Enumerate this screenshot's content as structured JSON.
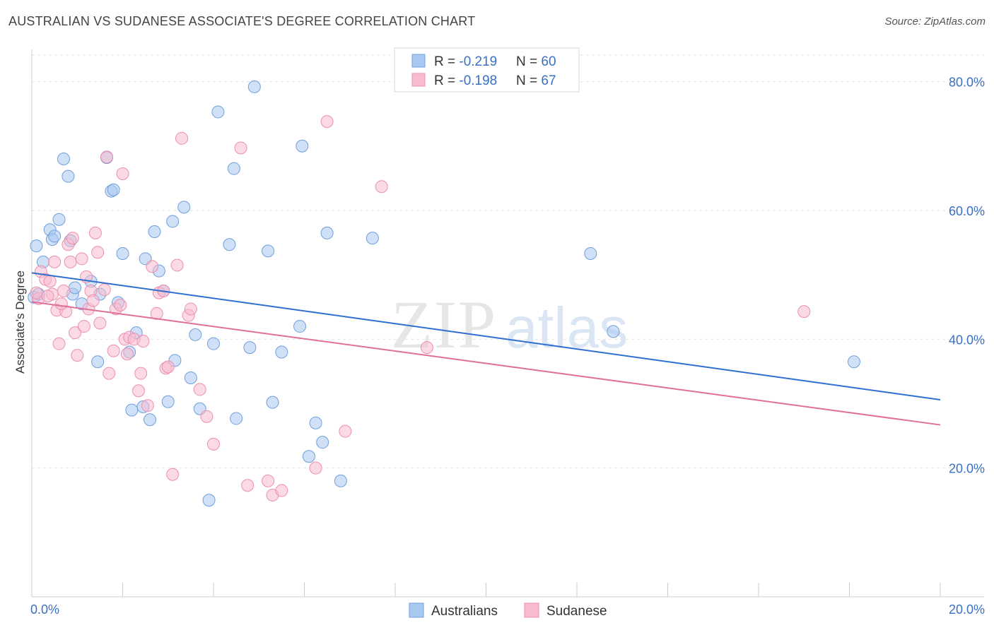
{
  "title": "AUSTRALIAN VS SUDANESE ASSOCIATE'S DEGREE CORRELATION CHART",
  "source": "Source: ZipAtlas.com",
  "watermark": {
    "zip": "ZIP",
    "atlas": "atlas"
  },
  "chart_data": {
    "type": "scatter",
    "ylabel": "Associate's Degree",
    "xlim": [
      0,
      20
    ],
    "ylim": [
      0,
      85
    ],
    "x_ticks": [
      0,
      2,
      4,
      6,
      8,
      10,
      12,
      14,
      16,
      18,
      20
    ],
    "x_tick_labels": {
      "left": "0.0%",
      "right": "20.0%"
    },
    "y_ticks": [
      {
        "value": 20,
        "label": "20.0%"
      },
      {
        "value": 40,
        "label": "40.0%"
      },
      {
        "value": 60,
        "label": "60.0%"
      },
      {
        "value": 80,
        "label": "80.0%"
      }
    ],
    "grid": true,
    "legend_position": "top-center",
    "series": [
      {
        "name": "Australians",
        "color": "#a9c8f0",
        "stroke": "#6f9fdc",
        "line_color": "#2f6fd0",
        "R": "-0.219",
        "N": "60",
        "trend": {
          "x": [
            0,
            20
          ],
          "y": [
            50.3,
            30.6
          ]
        },
        "points": [
          [
            0.1,
            54.5
          ],
          [
            0.25,
            52
          ],
          [
            0.4,
            57
          ],
          [
            0.45,
            55.5
          ],
          [
            0.5,
            56
          ],
          [
            0.6,
            58.6
          ],
          [
            0.7,
            68
          ],
          [
            0.8,
            65.3
          ],
          [
            0.85,
            55.3
          ],
          [
            0.9,
            47
          ],
          [
            0.95,
            48
          ],
          [
            1.1,
            45.5
          ],
          [
            1.3,
            49
          ],
          [
            1.45,
            36.5
          ],
          [
            1.5,
            47
          ],
          [
            1.65,
            68.2
          ],
          [
            1.75,
            63
          ],
          [
            1.8,
            63.2
          ],
          [
            1.9,
            45.7
          ],
          [
            2.0,
            53.3
          ],
          [
            2.15,
            38
          ],
          [
            2.2,
            29
          ],
          [
            2.3,
            41
          ],
          [
            2.45,
            29.5
          ],
          [
            2.5,
            52.5
          ],
          [
            2.6,
            27.5
          ],
          [
            2.7,
            56.7
          ],
          [
            2.8,
            50.6
          ],
          [
            2.9,
            47.5
          ],
          [
            3.0,
            30.3
          ],
          [
            3.1,
            58.3
          ],
          [
            3.15,
            36.7
          ],
          [
            3.35,
            60.5
          ],
          [
            3.5,
            34
          ],
          [
            3.6,
            40.7
          ],
          [
            3.7,
            29.2
          ],
          [
            3.9,
            15
          ],
          [
            4.0,
            39.3
          ],
          [
            4.1,
            75.3
          ],
          [
            4.35,
            54.7
          ],
          [
            4.45,
            66.5
          ],
          [
            4.5,
            27.7
          ],
          [
            4.8,
            38.7
          ],
          [
            4.9,
            79.2
          ],
          [
            5.2,
            53.7
          ],
          [
            5.3,
            30.2
          ],
          [
            5.5,
            38
          ],
          [
            5.9,
            42
          ],
          [
            5.95,
            70
          ],
          [
            6.1,
            21.8
          ],
          [
            6.25,
            27
          ],
          [
            6.4,
            24
          ],
          [
            6.5,
            56.5
          ],
          [
            6.8,
            18
          ],
          [
            7.5,
            55.7
          ],
          [
            12.3,
            53.3
          ],
          [
            12.8,
            41.2
          ],
          [
            18.1,
            36.5
          ],
          [
            0.05,
            46.5
          ],
          [
            0.15,
            47
          ]
        ]
      },
      {
        "name": "Sudanese",
        "color": "#f8bcd0",
        "stroke": "#ec8fae",
        "line_color": "#e0709a",
        "R": "-0.198",
        "N": "67",
        "trend": {
          "x": [
            0,
            20
          ],
          "y": [
            45.8,
            26.7
          ]
        },
        "points": [
          [
            0.15,
            46.3
          ],
          [
            0.2,
            50.5
          ],
          [
            0.3,
            49.3
          ],
          [
            0.4,
            49
          ],
          [
            0.45,
            47
          ],
          [
            0.5,
            52
          ],
          [
            0.55,
            44.5
          ],
          [
            0.6,
            39.3
          ],
          [
            0.7,
            47.5
          ],
          [
            0.75,
            44.3
          ],
          [
            0.8,
            54.7
          ],
          [
            0.85,
            52
          ],
          [
            0.9,
            55.7
          ],
          [
            0.95,
            41
          ],
          [
            1.0,
            37.5
          ],
          [
            1.1,
            52.5
          ],
          [
            1.15,
            42
          ],
          [
            1.2,
            49.7
          ],
          [
            1.25,
            44.7
          ],
          [
            1.3,
            47.5
          ],
          [
            1.4,
            56.5
          ],
          [
            1.45,
            53.5
          ],
          [
            1.5,
            42.5
          ],
          [
            1.6,
            47.7
          ],
          [
            1.65,
            68.3
          ],
          [
            1.7,
            34.7
          ],
          [
            1.8,
            38.2
          ],
          [
            1.85,
            44.7
          ],
          [
            1.95,
            45.3
          ],
          [
            2.0,
            65.7
          ],
          [
            2.05,
            40
          ],
          [
            2.1,
            37.7
          ],
          [
            2.15,
            40.3
          ],
          [
            2.25,
            40
          ],
          [
            2.35,
            32
          ],
          [
            2.4,
            34.7
          ],
          [
            2.45,
            39.7
          ],
          [
            2.55,
            29.7
          ],
          [
            2.65,
            51.3
          ],
          [
            2.8,
            47.2
          ],
          [
            2.9,
            47.5
          ],
          [
            2.95,
            35.5
          ],
          [
            3.0,
            35.7
          ],
          [
            3.1,
            19
          ],
          [
            3.2,
            51.5
          ],
          [
            3.3,
            71.2
          ],
          [
            3.45,
            43.7
          ],
          [
            3.5,
            44.7
          ],
          [
            3.7,
            32.2
          ],
          [
            3.85,
            28
          ],
          [
            4.0,
            23.7
          ],
          [
            4.6,
            69.7
          ],
          [
            4.75,
            17.3
          ],
          [
            5.2,
            18
          ],
          [
            5.3,
            15.8
          ],
          [
            5.5,
            16.5
          ],
          [
            6.25,
            20
          ],
          [
            6.5,
            73.8
          ],
          [
            6.9,
            25.7
          ],
          [
            7.7,
            63.7
          ],
          [
            8.7,
            38.7
          ],
          [
            17.0,
            44.3
          ],
          [
            0.1,
            47.2
          ],
          [
            0.35,
            46.7
          ],
          [
            0.65,
            45.5
          ],
          [
            1.35,
            46
          ],
          [
            2.75,
            44
          ]
        ]
      }
    ]
  }
}
